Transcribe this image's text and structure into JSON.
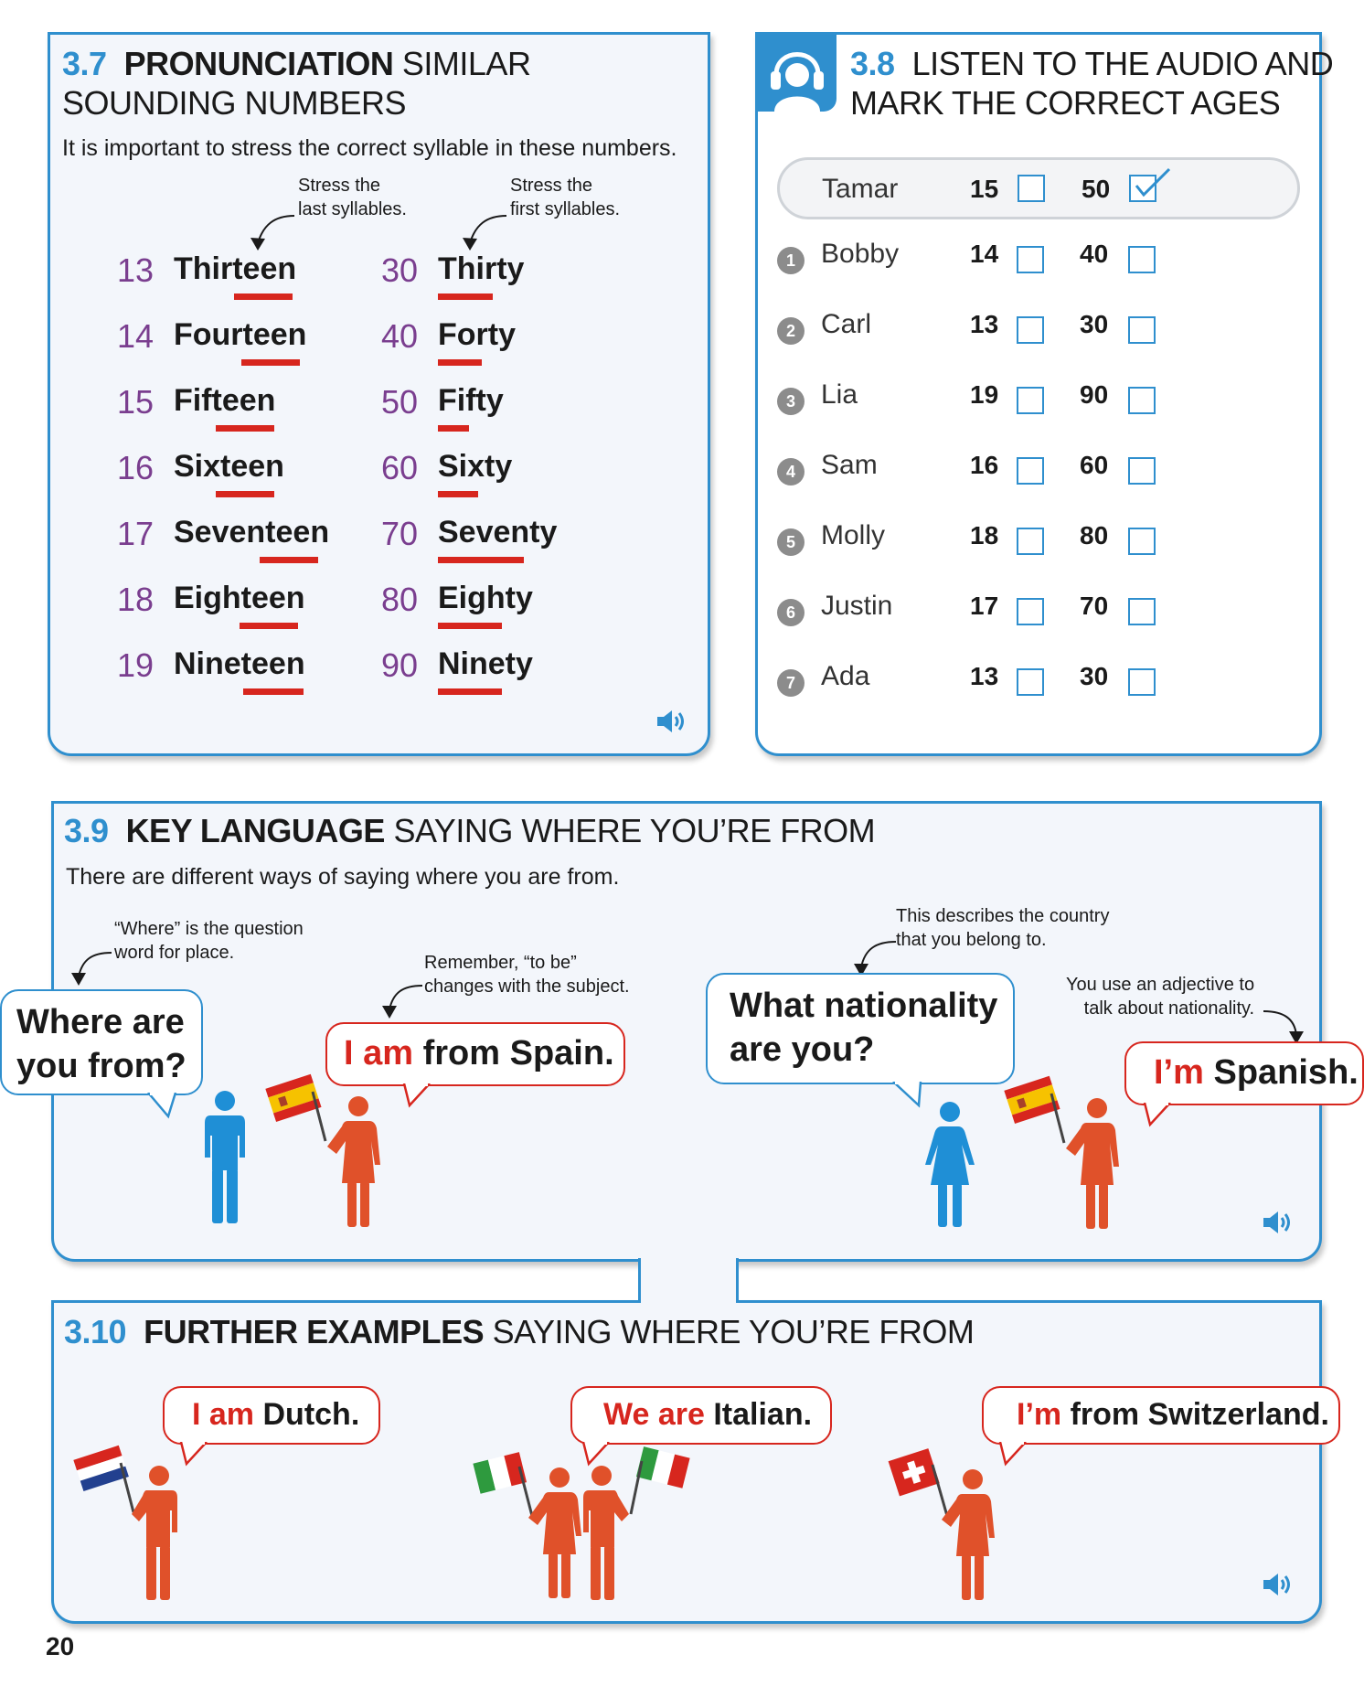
{
  "s37": {
    "num": "3.7",
    "title_bold": "PRONUNCIATION",
    "title_rest1": "SIMILAR",
    "title_rest2": "SOUNDING NUMBERS",
    "intro": "It is important to stress the correct syllable in these numbers.",
    "note_left_1": "Stress the",
    "note_left_2": "last syllables.",
    "note_right_1": "Stress the",
    "note_right_2": "first syllables.",
    "teens": [
      {
        "n": "13",
        "w": "Thirteen"
      },
      {
        "n": "14",
        "w": "Fourteen"
      },
      {
        "n": "15",
        "w": "Fifteen"
      },
      {
        "n": "16",
        "w": "Sixteen"
      },
      {
        "n": "17",
        "w": "Seventeen"
      },
      {
        "n": "18",
        "w": "Eighteen"
      },
      {
        "n": "19",
        "w": "Nineteen"
      }
    ],
    "tens": [
      {
        "n": "30",
        "w": "Thirty"
      },
      {
        "n": "40",
        "w": "Forty"
      },
      {
        "n": "50",
        "w": "Fifty"
      },
      {
        "n": "60",
        "w": "Sixty"
      },
      {
        "n": "70",
        "w": "Seventy"
      },
      {
        "n": "80",
        "w": "Eighty"
      },
      {
        "n": "90",
        "w": "Ninety"
      }
    ]
  },
  "s38": {
    "num": "3.8",
    "title_1": "LISTEN TO THE AUDIO AND",
    "title_2": "MARK THE CORRECT AGES",
    "example": {
      "name": "Tamar",
      "a1": "15",
      "a2": "50",
      "checked": "50"
    },
    "rows": [
      {
        "bullet": "1",
        "name": "Bobby",
        "a1": "14",
        "a2": "40"
      },
      {
        "bullet": "2",
        "name": "Carl",
        "a1": "13",
        "a2": "30"
      },
      {
        "bullet": "3",
        "name": "Lia",
        "a1": "19",
        "a2": "90"
      },
      {
        "bullet": "4",
        "name": "Sam",
        "a1": "16",
        "a2": "60"
      },
      {
        "bullet": "5",
        "name": "Molly",
        "a1": "18",
        "a2": "80"
      },
      {
        "bullet": "6",
        "name": "Justin",
        "a1": "17",
        "a2": "70"
      },
      {
        "bullet": "7",
        "name": "Ada",
        "a1": "13",
        "a2": "30"
      }
    ]
  },
  "s39": {
    "num": "3.9",
    "title_bold": "KEY LANGUAGE",
    "title_rest": "SAYING WHERE YOU’RE FROM",
    "intro": "There are different ways of saying where you are from.",
    "note_where_1": "“Where” is the question",
    "note_where_2": "word for place.",
    "note_tobe_1": "Remember, “to be”",
    "note_tobe_2": "changes with the subject.",
    "note_nat_1": "This describes the country",
    "note_nat_2": "that you belong to.",
    "note_adj_1": "You use an adjective to",
    "note_adj_2": "talk about nationality.",
    "q1_line1": "Where are",
    "q1_line2": "you from?",
    "a1_hl": "I am",
    "a1_rest": "from Spain.",
    "q2_line1": "What nationality",
    "q2_line2": "are you?",
    "a2_hl": "I’m",
    "a2_rest": "Spanish."
  },
  "s310": {
    "num": "3.10",
    "title_bold": "FURTHER EXAMPLES",
    "title_rest": "SAYING WHERE YOU’RE FROM",
    "ex1_hl": "I am",
    "ex1_rest": "Dutch.",
    "ex2_hl": "We are",
    "ex2_rest": "Italian.",
    "ex3_hl": "I’m",
    "ex3_rest": "from Switzerland."
  },
  "colors": {
    "accent_blue": "#2f8fce",
    "accent_red": "#d7261e",
    "number_purple": "#7a3e8f",
    "figure_blue": "#1f8fd6",
    "figure_red": "#e0512a"
  },
  "page_number": "20"
}
